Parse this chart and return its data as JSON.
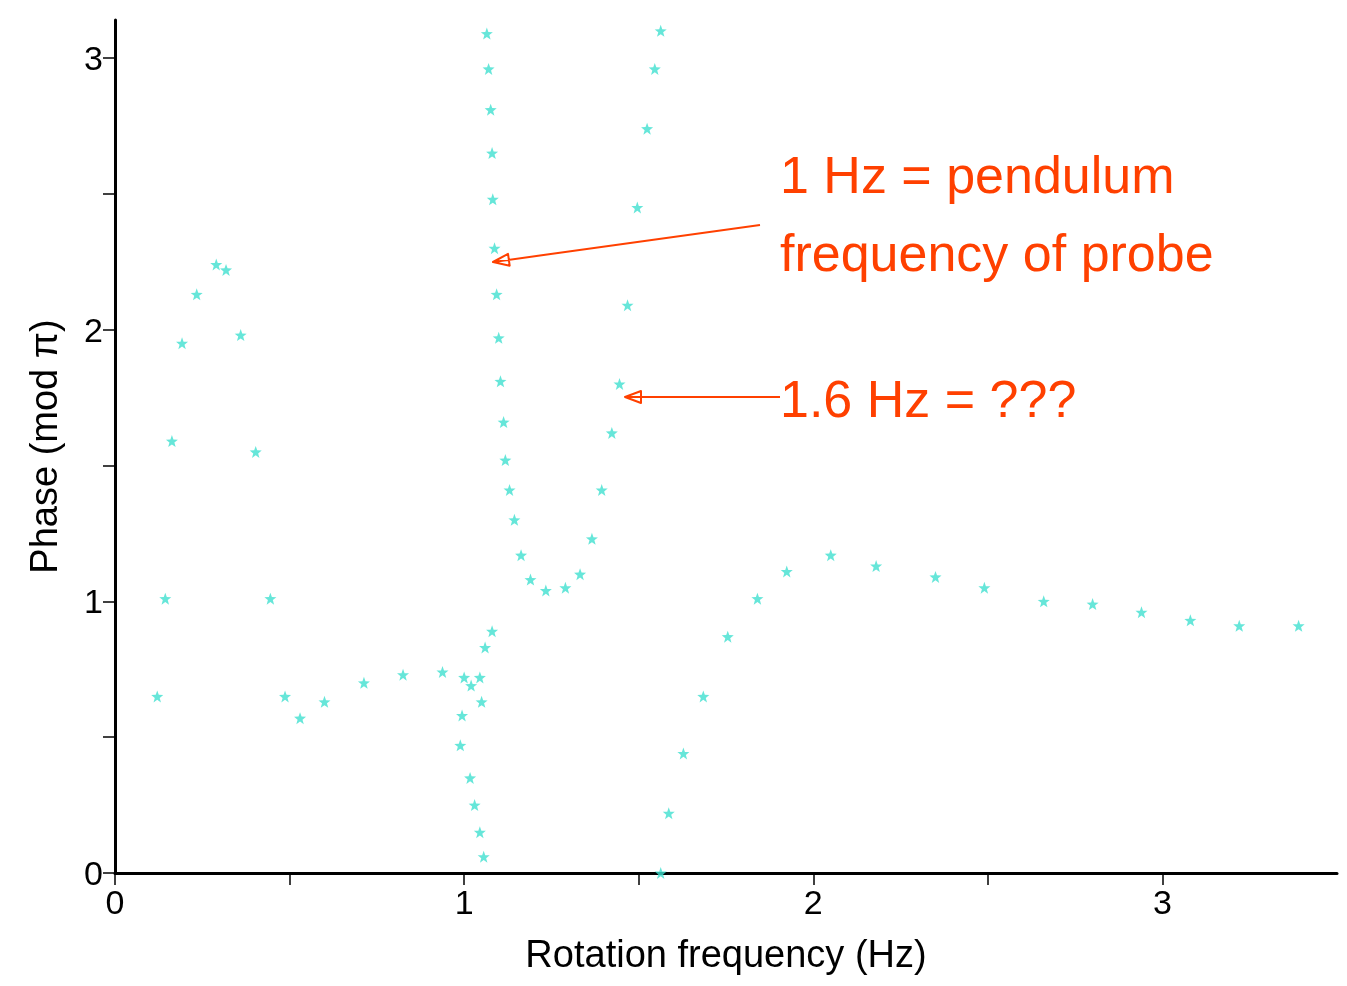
{
  "chart_data": {
    "type": "scatter",
    "xlabel": "Rotation frequency (Hz)",
    "ylabel": "Phase (mod π)",
    "marker": "star",
    "grid": false,
    "xlim": [
      0,
      3.5
    ],
    "xticks": [
      0,
      {
        "value": 0.5,
        "label": null
      },
      1,
      {
        "value": 1.5,
        "label": null
      },
      2,
      {
        "value": 2.5,
        "label": null
      },
      3
    ],
    "ylim": [
      0,
      3.14
    ],
    "yticks": [
      0,
      {
        "value": 0.5,
        "label": null
      },
      1,
      {
        "value": 1.5,
        "label": null
      },
      2,
      {
        "value": 2.5,
        "label": null
      },
      3
    ],
    "annotations": [
      "1 Hz = pendulum\nfrequency of probe",
      "1.6 Hz = ???"
    ],
    "series": [
      {
        "color": "#40e0d0",
        "x": [
          0.121,
          0.144,
          0.163,
          0.192,
          0.234,
          0.29,
          0.318,
          0.36,
          0.403,
          0.445,
          0.487,
          0.53,
          0.6,
          0.713,
          0.825,
          0.938,
          1.0,
          0.994,
          0.989,
          1.02,
          1.045,
          1.06,
          1.08,
          1.056,
          1.045,
          1.03,
          1.017,
          1.05,
          1.065,
          1.07,
          1.076,
          1.08,
          1.082,
          1.087,
          1.093,
          1.099,
          1.104,
          1.113,
          1.118,
          1.13,
          1.144,
          1.163,
          1.19,
          1.234,
          1.29,
          1.332,
          1.366,
          1.394,
          1.423,
          1.445,
          1.468,
          1.496,
          1.524,
          1.546,
          1.563,
          1.563,
          1.586,
          1.628,
          1.685,
          1.755,
          1.84,
          1.924,
          2.05,
          2.18,
          2.35,
          2.49,
          2.66,
          2.8,
          2.94,
          3.08,
          3.22,
          3.39
        ],
        "values": [
          0.65,
          1.01,
          1.59,
          1.95,
          2.13,
          2.24,
          2.22,
          1.98,
          1.55,
          1.01,
          0.65,
          0.57,
          0.63,
          0.7,
          0.73,
          0.74,
          0.72,
          0.58,
          0.47,
          0.69,
          0.72,
          0.83,
          0.89,
          0.06,
          0.15,
          0.25,
          0.35,
          0.63,
          3.09,
          2.96,
          2.81,
          2.65,
          2.48,
          2.3,
          2.13,
          1.97,
          1.81,
          1.66,
          1.52,
          1.41,
          1.3,
          1.17,
          1.08,
          1.04,
          1.05,
          1.1,
          1.23,
          1.41,
          1.62,
          1.8,
          2.09,
          2.45,
          2.74,
          2.96,
          3.1,
          0.0,
          0.22,
          0.44,
          0.65,
          0.87,
          1.01,
          1.11,
          1.17,
          1.13,
          1.09,
          1.05,
          1.0,
          0.99,
          0.96,
          0.93,
          0.91,
          0.91
        ]
      }
    ]
  }
}
